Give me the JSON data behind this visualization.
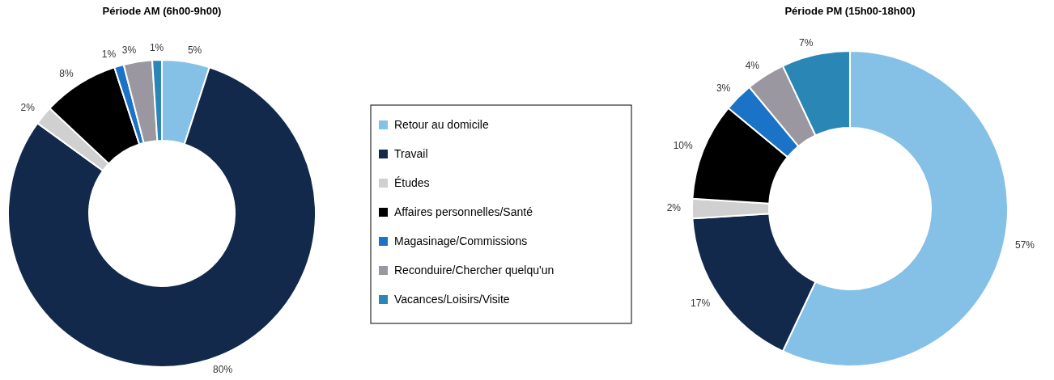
{
  "chart_data": [
    {
      "type": "donut",
      "title": "Période AM (6h00-9h00)",
      "categories": [
        "Retour au domicile",
        "Travail",
        "Études",
        "Affaires personnelles/Santé",
        "Magasinage/Commissions",
        "Reconduire/Chercher quelqu'un",
        "Vacances/Loisirs/Visite"
      ],
      "values": [
        5,
        80,
        2,
        8,
        1,
        3,
        1
      ],
      "value_labels": [
        "5%",
        "80%",
        "2%",
        "8%",
        "1%",
        "3%",
        "1%"
      ],
      "colors": [
        "#85c1e6",
        "#13294b",
        "#d0d0d0",
        "#000000",
        "#1a73c7",
        "#9a97a0",
        "#2a86b5"
      ],
      "legend": "right"
    },
    {
      "type": "donut",
      "title": "Période PM (15h00-18h00)",
      "categories": [
        null,
        null,
        null,
        null,
        null,
        null,
        null
      ],
      "values": [
        57,
        17,
        2,
        10,
        3,
        4,
        7
      ],
      "value_labels": [
        "57%",
        "17%",
        "2%",
        "10%",
        "3%",
        "4%",
        "7%"
      ],
      "colors": [
        "#85c1e6",
        "#13294b",
        "#d0d0d0",
        "#000000",
        "#1a73c7",
        "#9a97a0",
        "#2a86b5"
      ]
    }
  ]
}
